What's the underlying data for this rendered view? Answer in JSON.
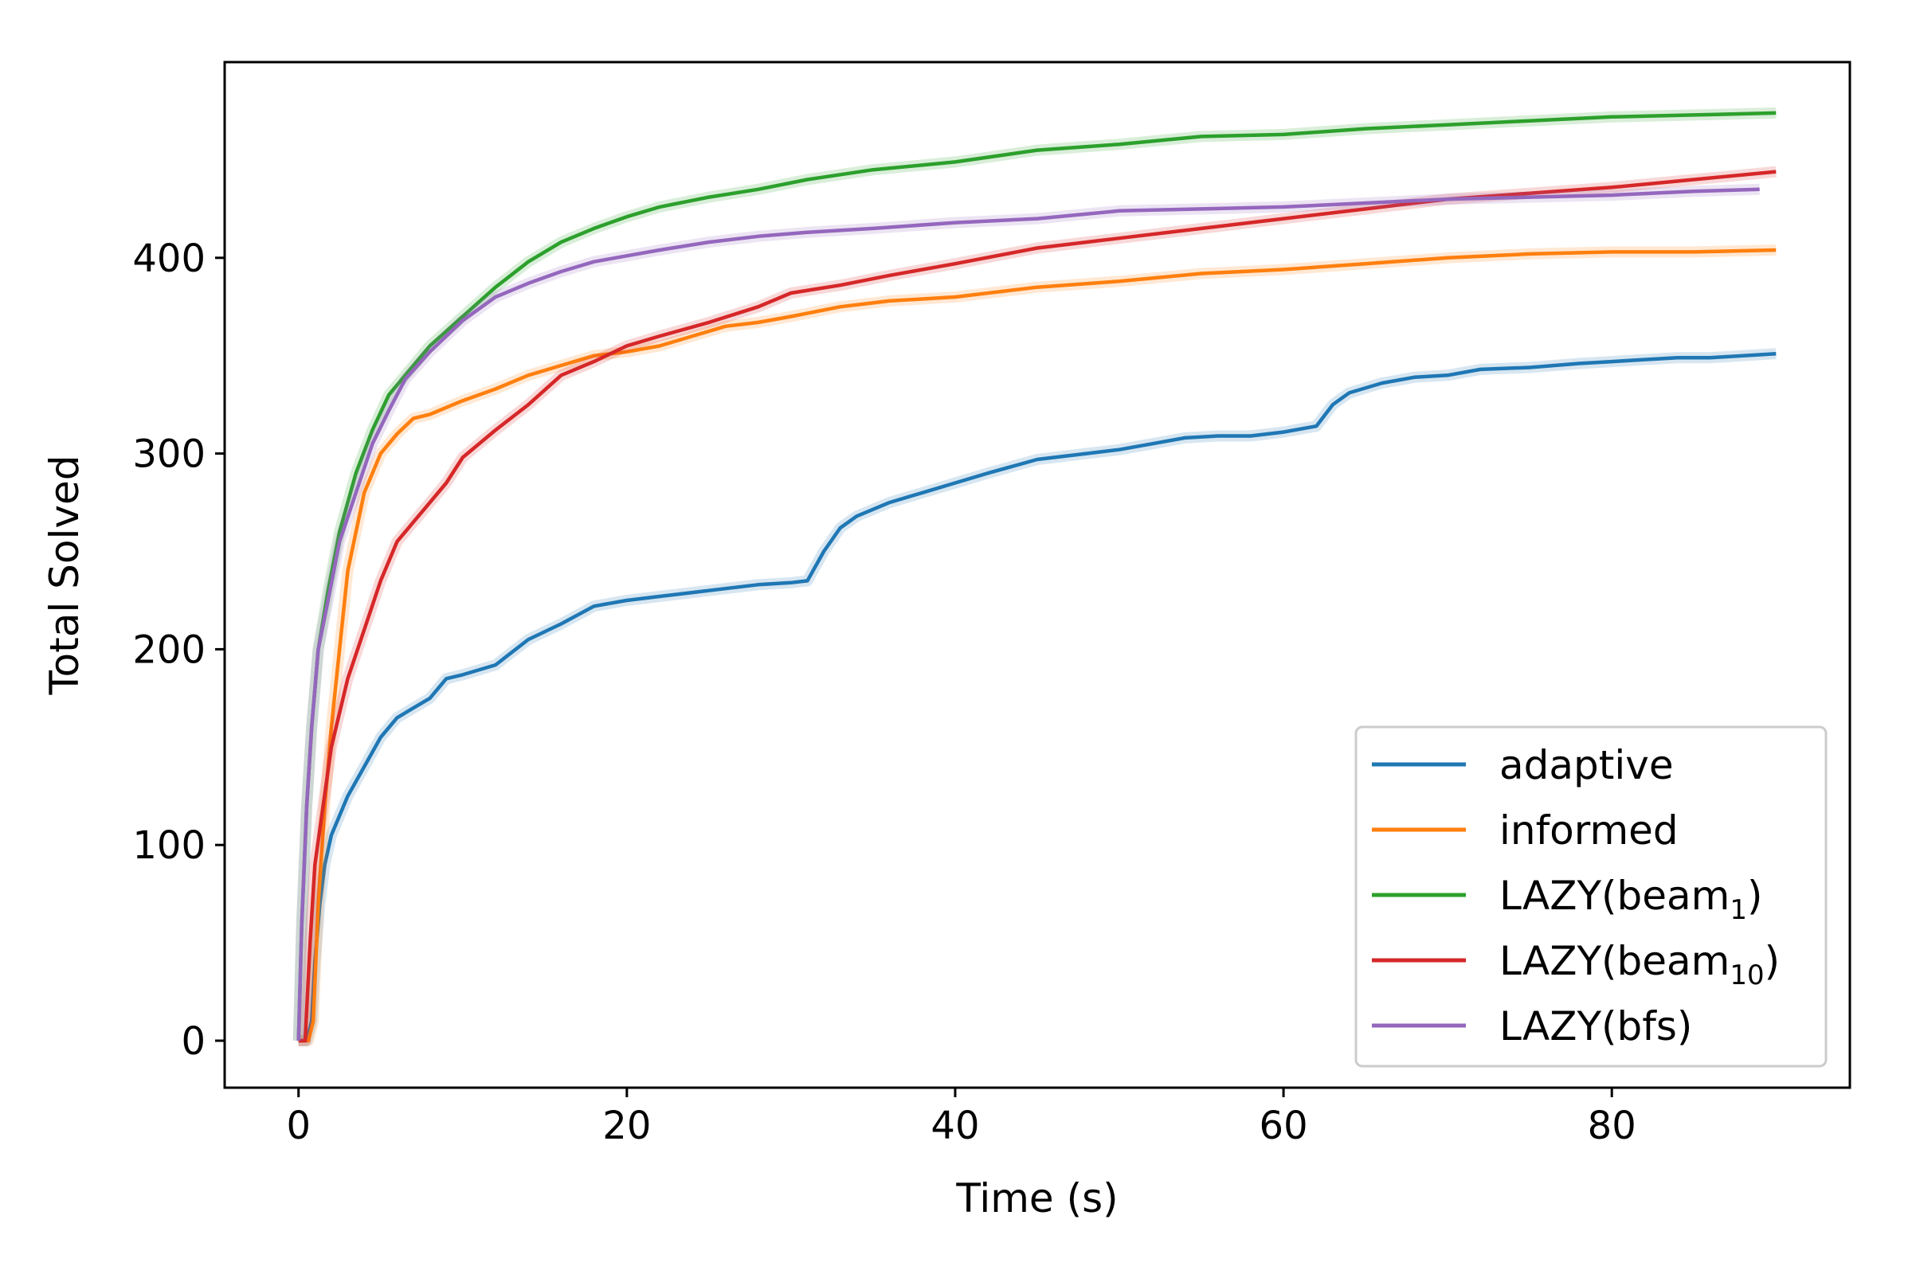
{
  "chart_data": {
    "type": "line",
    "title": "",
    "xlabel": "Time (s)",
    "ylabel": "Total Solved",
    "xlim": [
      -4.5,
      94.5
    ],
    "ylim": [
      -24,
      500
    ],
    "xticks": [
      0,
      20,
      40,
      60,
      80
    ],
    "yticks": [
      0,
      100,
      200,
      300,
      400
    ],
    "xtick_labels": [
      "0",
      "20",
      "40",
      "60",
      "80"
    ],
    "ytick_labels": [
      "0",
      "100",
      "200",
      "300",
      "400"
    ],
    "grid": false,
    "legend_position": "lower-right",
    "series": [
      {
        "name": "adaptive",
        "legend_base": "adaptive",
        "legend_sub": "",
        "legend_suffix": "",
        "color": "#1f77b4",
        "x": [
          0,
          0.5,
          0.8,
          1,
          1.3,
          1.6,
          2,
          3,
          4,
          5,
          6,
          7,
          8,
          9,
          10,
          12,
          14,
          16,
          18,
          20,
          22,
          24,
          26,
          28,
          30,
          31,
          32,
          33,
          34,
          36,
          38,
          40,
          42,
          45,
          48,
          50,
          52,
          54,
          56,
          58,
          60,
          62,
          63,
          64,
          66,
          68,
          70,
          72,
          75,
          78,
          80,
          82,
          84,
          86,
          88,
          90
        ],
        "y": [
          0,
          0,
          10,
          40,
          70,
          90,
          105,
          125,
          140,
          155,
          165,
          170,
          175,
          185,
          187,
          192,
          205,
          213,
          222,
          225,
          227,
          229,
          231,
          233,
          234,
          235,
          250,
          262,
          268,
          275,
          280,
          285,
          290,
          297,
          300,
          302,
          305,
          308,
          309,
          309,
          311,
          314,
          325,
          331,
          336,
          339,
          340,
          343,
          344,
          346,
          347,
          348,
          349,
          349,
          350,
          351
        ]
      },
      {
        "name": "informed",
        "legend_base": "informed",
        "legend_sub": "",
        "legend_suffix": "",
        "color": "#ff7f0e",
        "x": [
          0,
          0.6,
          0.9,
          1.2,
          1.6,
          2,
          2.5,
          3,
          4,
          5,
          6,
          7,
          8,
          10,
          12,
          14,
          16,
          18,
          20,
          22,
          24,
          26,
          28,
          30,
          33,
          36,
          40,
          45,
          50,
          55,
          60,
          65,
          70,
          75,
          80,
          85,
          90
        ],
        "y": [
          0,
          0,
          10,
          70,
          120,
          160,
          200,
          240,
          280,
          300,
          310,
          318,
          320,
          327,
          333,
          340,
          345,
          350,
          352,
          355,
          360,
          365,
          367,
          370,
          375,
          378,
          380,
          385,
          388,
          392,
          394,
          397,
          400,
          402,
          403,
          403,
          404
        ]
      },
      {
        "name": "LAZY(beam1)",
        "legend_base": "LAZY(beam",
        "legend_sub": "1",
        "legend_suffix": ")",
        "color": "#2ca02c",
        "x": [
          0,
          0.2,
          0.5,
          0.8,
          1.2,
          1.8,
          2.5,
          3.5,
          4.5,
          5.5,
          6.5,
          8,
          10,
          12,
          14,
          16,
          18,
          20,
          22,
          25,
          28,
          31,
          35,
          40,
          45,
          50,
          55,
          60,
          65,
          70,
          75,
          80,
          85,
          90
        ],
        "y": [
          0,
          60,
          120,
          160,
          200,
          230,
          260,
          290,
          312,
          330,
          340,
          355,
          370,
          385,
          398,
          408,
          415,
          421,
          426,
          431,
          435,
          440,
          445,
          449,
          455,
          458,
          462,
          463,
          466,
          468,
          470,
          472,
          473,
          474
        ]
      },
      {
        "name": "LAZY(beam10)",
        "legend_base": "LAZY(beam",
        "legend_sub": "10",
        "legend_suffix": ")",
        "color": "#d62728",
        "x": [
          0,
          0.4,
          0.7,
          1,
          1.5,
          2,
          3,
          4,
          5,
          6,
          7,
          8,
          9,
          10,
          12,
          14,
          16,
          18,
          20,
          22,
          25,
          28,
          30,
          33,
          36,
          40,
          45,
          50,
          55,
          60,
          65,
          70,
          75,
          80,
          85,
          90
        ],
        "y": [
          0,
          0,
          50,
          90,
          120,
          150,
          185,
          210,
          235,
          255,
          265,
          275,
          285,
          298,
          312,
          325,
          340,
          347,
          355,
          360,
          367,
          375,
          382,
          386,
          391,
          397,
          405,
          410,
          415,
          420,
          425,
          430,
          433,
          436,
          440,
          444
        ]
      },
      {
        "name": "LAZY(bfs)",
        "legend_base": "LAZY(bfs)",
        "legend_sub": "",
        "legend_suffix": "",
        "color": "#9467bd",
        "x": [
          0,
          0.2,
          0.5,
          0.8,
          1.2,
          1.8,
          2.5,
          3.5,
          4.5,
          5.5,
          6.5,
          8,
          10,
          12,
          14,
          16,
          18,
          20,
          22,
          25,
          28,
          31,
          35,
          40,
          45,
          50,
          55,
          60,
          65,
          70,
          75,
          80,
          85,
          89
        ],
        "y": [
          0,
          60,
          120,
          160,
          200,
          225,
          255,
          280,
          305,
          322,
          338,
          352,
          368,
          380,
          387,
          393,
          398,
          401,
          404,
          408,
          411,
          413,
          415,
          418,
          420,
          424,
          425,
          426,
          428,
          430,
          431,
          432,
          434,
          435
        ]
      }
    ]
  }
}
